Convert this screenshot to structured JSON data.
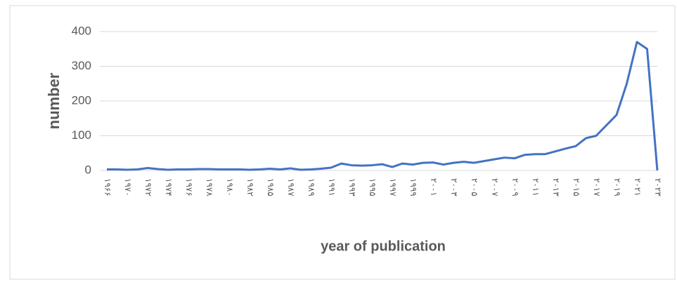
{
  "chart_data": {
    "type": "line",
    "ylabel": "number",
    "xlabel": "year of publication",
    "categories": [
      "۱۹۶۶",
      null,
      "۱۹۷۰",
      null,
      "۱۹۷۲",
      null,
      "۱۹۷۴",
      null,
      "۱۹۷۶",
      null,
      "۱۹۷۸",
      null,
      "۱۹۸۰",
      null,
      "۱۹۸۲",
      null,
      "۱۹۸۵",
      null,
      "۱۹۸۷",
      null,
      "۱۹۸۹",
      null,
      "۱۹۹۱",
      null,
      "۱۹۹۳",
      null,
      "۱۹۹۵",
      null,
      "۱۹۹۷",
      null,
      "۱۹۹۹",
      null,
      "۲۰۰۱",
      null,
      "۲۰۰۳",
      null,
      "۲۰۰۵",
      null,
      "۲۰۰۷",
      null,
      "۲۰۰۹",
      null,
      "۲۰۱۱",
      null,
      "۲۰۱۳",
      null,
      "۲۰۱۵",
      null,
      "۲۰۱۷",
      null,
      "۲۰۱۹",
      null,
      "۲۰۲۱",
      null,
      "۲۰۲۳"
    ],
    "values": [
      3,
      3,
      2,
      3,
      7,
      4,
      2,
      3,
      3,
      4,
      4,
      3,
      3,
      3,
      2,
      3,
      5,
      3,
      6,
      2,
      3,
      5,
      8,
      20,
      15,
      14,
      15,
      18,
      10,
      20,
      17,
      22,
      23,
      17,
      22,
      25,
      22,
      27,
      32,
      37,
      35,
      45,
      47,
      47,
      55,
      63,
      70,
      93,
      100,
      130,
      160,
      250,
      370,
      350,
      0
    ],
    "color": "#4472c4",
    "ylim": [
      0,
      400
    ],
    "yticks": [
      0,
      100,
      200,
      300,
      400
    ],
    "grid": true
  }
}
